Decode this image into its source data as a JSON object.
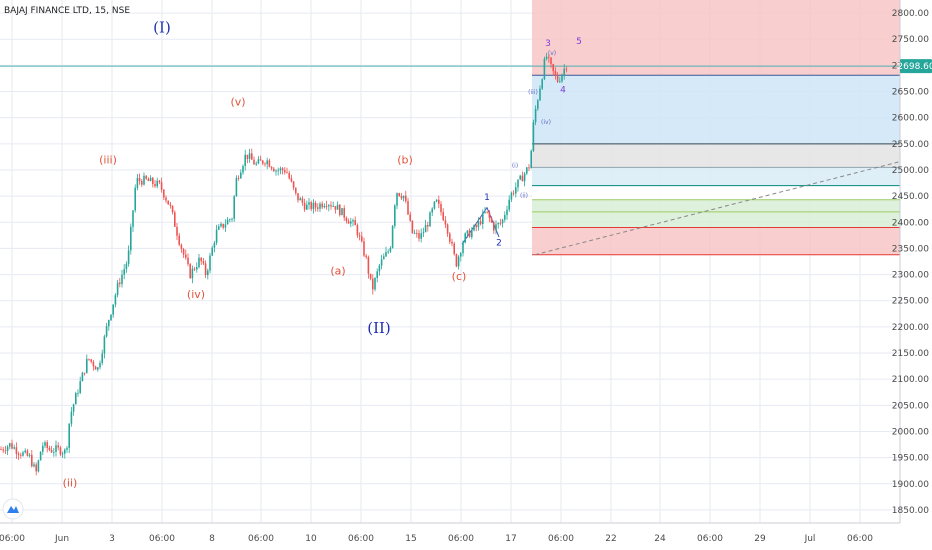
{
  "title": "BAJAJ FINANCE LTD, 15, NSE",
  "price_badge": "2698.60",
  "colors": {
    "bull": "#26a69a",
    "bear": "#ef5350",
    "wave_major": "#1f2fb0",
    "wave_minor": "#e0543c",
    "wave_micro": "#7b3fe0",
    "grid": "#e6eaf2"
  },
  "chart_data": {
    "type": "candlestick",
    "ylim": [
      1825,
      2825
    ],
    "y_ticks": [
      1850,
      1900,
      1950,
      2000,
      2050,
      2100,
      2150,
      2200,
      2250,
      2300,
      2350,
      2400,
      2450,
      2500,
      2550,
      2600,
      2650,
      2700,
      2750,
      2800
    ],
    "y_tick_labels": [
      "1850.00",
      "1900.00",
      "1950.00",
      "2000.00",
      "2050.00",
      "2100.00",
      "2150.00",
      "2200.00",
      "2250.00",
      "2300.00",
      "2350.00",
      "2400.00",
      "2450.00",
      "2500.00",
      "2550.00",
      "2600.00",
      "2650.00",
      "2700.00",
      "2750.00",
      "2800.00"
    ],
    "x_tick_labels": [
      "06:00",
      "Jun",
      "3",
      "06:00",
      "8",
      "06:00",
      "10",
      "06:00",
      "15",
      "06:00",
      "17",
      "06:00",
      "22",
      "24",
      "06:00",
      "29",
      "Jul",
      "06:00"
    ],
    "price_path": [
      [
        0,
        1965
      ],
      [
        10,
        1975
      ],
      [
        20,
        1960
      ],
      [
        30,
        1950
      ],
      [
        36,
        1920
      ],
      [
        42,
        1975
      ],
      [
        50,
        1965
      ],
      [
        60,
        1965
      ],
      [
        66,
        1960
      ],
      [
        70,
        2030
      ],
      [
        78,
        2080
      ],
      [
        88,
        2140
      ],
      [
        98,
        2120
      ],
      [
        108,
        2210
      ],
      [
        118,
        2280
      ],
      [
        128,
        2330
      ],
      [
        136,
        2480
      ],
      [
        146,
        2480
      ],
      [
        160,
        2470
      ],
      [
        170,
        2430
      ],
      [
        180,
        2360
      ],
      [
        190,
        2300
      ],
      [
        200,
        2330
      ],
      [
        206,
        2300
      ],
      [
        216,
        2380
      ],
      [
        226,
        2400
      ],
      [
        232,
        2410
      ],
      [
        236,
        2480
      ],
      [
        246,
        2530
      ],
      [
        256,
        2510
      ],
      [
        266,
        2520
      ],
      [
        276,
        2500
      ],
      [
        286,
        2500
      ],
      [
        296,
        2450
      ],
      [
        306,
        2430
      ],
      [
        316,
        2430
      ],
      [
        326,
        2440
      ],
      [
        336,
        2430
      ],
      [
        346,
        2410
      ],
      [
        356,
        2390
      ],
      [
        366,
        2330
      ],
      [
        372,
        2270
      ],
      [
        380,
        2320
      ],
      [
        390,
        2350
      ],
      [
        396,
        2460
      ],
      [
        404,
        2450
      ],
      [
        412,
        2380
      ],
      [
        420,
        2370
      ],
      [
        428,
        2400
      ],
      [
        436,
        2440
      ],
      [
        446,
        2400
      ],
      [
        456,
        2320
      ],
      [
        464,
        2370
      ],
      [
        476,
        2390
      ],
      [
        486,
        2420
      ],
      [
        494,
        2390
      ],
      [
        502,
        2400
      ],
      [
        510,
        2450
      ],
      [
        520,
        2480
      ],
      [
        530,
        2510
      ],
      [
        534,
        2600
      ],
      [
        540,
        2660
      ],
      [
        546,
        2720
      ],
      [
        552,
        2690
      ],
      [
        558,
        2670
      ],
      [
        566,
        2700
      ],
      [
        570,
        2710
      ]
    ],
    "horizontal_levels": [
      {
        "price": 2698.6,
        "color": "#4fb0b0"
      },
      {
        "price": 2681,
        "color": "#3b5998"
      },
      {
        "price": 2550,
        "color": "#37474f"
      },
      {
        "price": 2505,
        "color": "#90a4ae"
      },
      {
        "price": 2470,
        "color": "#00897b"
      },
      {
        "price": 2443,
        "color": "#9ccc65"
      },
      {
        "price": 2420,
        "color": "#9ccc65"
      },
      {
        "price": 2390,
        "color": "#e53935"
      },
      {
        "price": 2338,
        "color": "#e53935"
      }
    ],
    "zones": [
      {
        "from": 2825,
        "to": 2681,
        "color": "#f8c5c5"
      },
      {
        "from": 2681,
        "to": 2550,
        "color": "#cfe5f8"
      },
      {
        "from": 2550,
        "to": 2505,
        "color": "#e3e3e3"
      },
      {
        "from": 2505,
        "to": 2470,
        "color": "#d9ecf7"
      },
      {
        "from": 2470,
        "to": 2443,
        "color": "#ffffff"
      },
      {
        "from": 2443,
        "to": 2390,
        "color": "#d8efd6"
      },
      {
        "from": 2390,
        "to": 2338,
        "color": "#f8c5c5"
      }
    ],
    "trendline": {
      "from": [
        535,
        2338
      ],
      "to": [
        900,
        2516
      ]
    },
    "wave_labels": [
      {
        "text": "(I)",
        "x": 162,
        "price": 2763,
        "kind": "major"
      },
      {
        "text": "(II)",
        "x": 379,
        "price": 2188,
        "kind": "major"
      },
      {
        "text": "(ii)",
        "x": 70,
        "price": 1895,
        "kind": "minor"
      },
      {
        "text": "(iii)",
        "x": 108,
        "price": 2512,
        "kind": "minor"
      },
      {
        "text": "(iv)",
        "x": 196,
        "price": 2255,
        "kind": "minor"
      },
      {
        "text": "(v)",
        "x": 238,
        "price": 2623,
        "kind": "minor"
      },
      {
        "text": "(a)",
        "x": 338,
        "price": 2300,
        "kind": "minor"
      },
      {
        "text": "(b)",
        "x": 405,
        "price": 2512,
        "kind": "minor"
      },
      {
        "text": "(c)",
        "x": 459,
        "price": 2290,
        "kind": "minor"
      },
      {
        "text": "1",
        "x": 487,
        "price": 2443,
        "kind": "micro_sub"
      },
      {
        "text": "2",
        "x": 499,
        "price": 2356,
        "kind": "micro_sub"
      },
      {
        "text": "(i)",
        "x": 515,
        "price": 2505,
        "kind": "micro_tiny"
      },
      {
        "text": "(ii)",
        "x": 524,
        "price": 2447,
        "kind": "micro_tiny"
      },
      {
        "text": "(iii)",
        "x": 533,
        "price": 2645,
        "kind": "micro_tiny"
      },
      {
        "text": "(iv)",
        "x": 546,
        "price": 2588,
        "kind": "micro_tiny"
      },
      {
        "text": "3",
        "x": 548,
        "price": 2737,
        "kind": "micro"
      },
      {
        "text": "(v)",
        "x": 552,
        "price": 2720,
        "kind": "micro_tiny"
      },
      {
        "text": "4",
        "x": 563,
        "price": 2648,
        "kind": "micro"
      },
      {
        "text": "5",
        "x": 579,
        "price": 2741,
        "kind": "micro"
      }
    ]
  }
}
